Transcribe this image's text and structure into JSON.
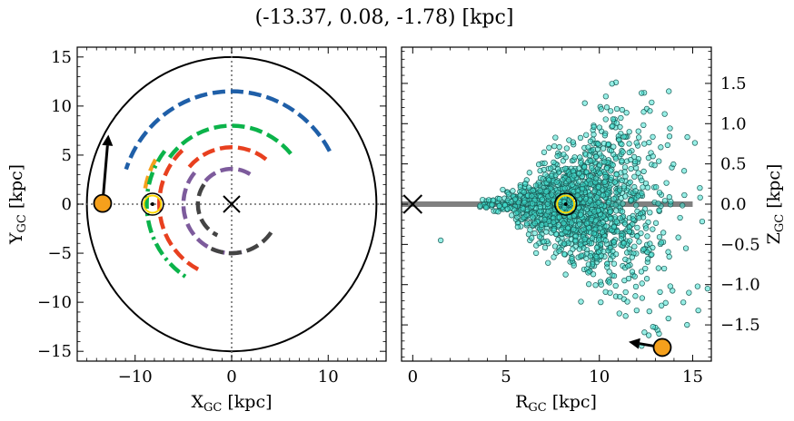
{
  "figure": {
    "title": "(-13.37, 0.08, -1.78) [kpc]"
  },
  "chart_data": [
    {
      "type": "line",
      "panel": "left",
      "xlabel": "X",
      "xlabel_sub": "GC",
      "xlabel_unit": " [kpc]",
      "ylabel": "Y",
      "ylabel_sub": "GC",
      "ylabel_unit": " [kpc]",
      "xlim": [
        -16,
        16
      ],
      "ylim": [
        -16,
        16
      ],
      "xticks": [
        -10,
        0,
        10
      ],
      "yticks": [
        -15,
        -10,
        -5,
        0,
        5,
        10,
        15
      ],
      "grid": false,
      "boundary_circle_radius": 15,
      "reference_lines": {
        "x": 0,
        "y": 0,
        "style": "dotted"
      },
      "galactic_center": {
        "x": 0,
        "y": 0,
        "marker": "x"
      },
      "sun": {
        "x": -8.2,
        "y": 0.0,
        "marker": "circle-dot"
      },
      "target": {
        "x": -13.37,
        "y": 0.08,
        "color": "#f5a01c"
      },
      "velocity_arrow": {
        "x": -13.37,
        "y": 0.08,
        "dx": 0.6,
        "dy": 7.0
      },
      "series": [
        {
          "color": "#1f5fa8",
          "dash": "long",
          "radius": 11.5,
          "theta_start": 28,
          "theta_end": 162
        },
        {
          "color": "#f5a01c",
          "dash": "long",
          "radius": 9.1,
          "theta_start": 150,
          "theta_end": 172
        },
        {
          "color": "#0bb34a",
          "dash": "dashdot",
          "radius": 8.8,
          "theta_start": 142,
          "theta_end": 240
        },
        {
          "color": "#0bb34a",
          "dash": "long",
          "radius": 8.0,
          "theta_start": 40,
          "theta_end": 145
        },
        {
          "color": "#e8401f",
          "dash": "long",
          "radius": 7.5,
          "theta_start": 133,
          "theta_end": 243
        },
        {
          "color": "#e8401f",
          "dash": "long",
          "radius": 5.8,
          "theta_start": 52,
          "theta_end": 140
        },
        {
          "color": "#7d5b9c",
          "dash": "long",
          "radius": 5.0,
          "theta_start": 140,
          "theta_end": 282
        },
        {
          "color": "#7d5b9c",
          "dash": "long",
          "radius": 3.6,
          "theta_start": 58,
          "theta_end": 140
        },
        {
          "color": "#444444",
          "dash": "long",
          "radius": 3.5,
          "theta_start": 145,
          "theta_end": 245
        },
        {
          "color": "#444444",
          "dash": "long",
          "radius": 5.0,
          "theta_start": 245,
          "theta_end": 330
        }
      ]
    },
    {
      "type": "scatter",
      "panel": "right",
      "xlabel": "R",
      "xlabel_sub": "GC",
      "xlabel_unit": " [kpc]",
      "ylabel": "Z",
      "ylabel_sub": "GC",
      "ylabel_unit": " [kpc]",
      "xlim": [
        -0.6,
        16
      ],
      "ylim": [
        -1.95,
        1.95
      ],
      "xticks": [
        0,
        5,
        10,
        15
      ],
      "yticks": [
        -1.5,
        -1.0,
        -0.5,
        0.0,
        0.5,
        1.0,
        1.5
      ],
      "ytick_labels": [
        "−1.5",
        "−1.0",
        "−0.5",
        "0.0",
        "0.5",
        "1.0",
        "1.5"
      ],
      "yaxis_side": "right",
      "grid": false,
      "disk_line": {
        "y": 0,
        "x_start": -0.6,
        "x_end": 15,
        "color": "#808080"
      },
      "galactic_center": {
        "x": 0,
        "y": 0,
        "marker": "x"
      },
      "sun": {
        "x": 8.2,
        "y": 0.0,
        "marker": "circle-dot"
      },
      "target": {
        "x": 13.37,
        "y": -1.78,
        "color": "#f5a01c"
      },
      "velocity_arrow": {
        "x": 13.37,
        "y": -1.78,
        "dx": -1.8,
        "dy": 0.07
      },
      "point_color": "#40e0d0",
      "point_count": 1500,
      "point_seed": 7,
      "outliers": [
        [
          10.1,
          1.18
        ],
        [
          13.5,
          1.12
        ],
        [
          1.5,
          -0.45
        ],
        [
          13.8,
          -1.02
        ],
        [
          14.8,
          -1.1
        ],
        [
          15.8,
          -1.05
        ],
        [
          11.1,
          -1.15
        ],
        [
          12.0,
          -1.32
        ],
        [
          13.7,
          -1.42
        ],
        [
          14.7,
          -1.5
        ],
        [
          15.3,
          -1.32
        ],
        [
          14.5,
          -1.22
        ],
        [
          10.1,
          -1.0
        ],
        [
          13.2,
          -1.61
        ],
        [
          9.4,
          -0.85
        ],
        [
          12.6,
          -0.68
        ]
      ]
    }
  ]
}
